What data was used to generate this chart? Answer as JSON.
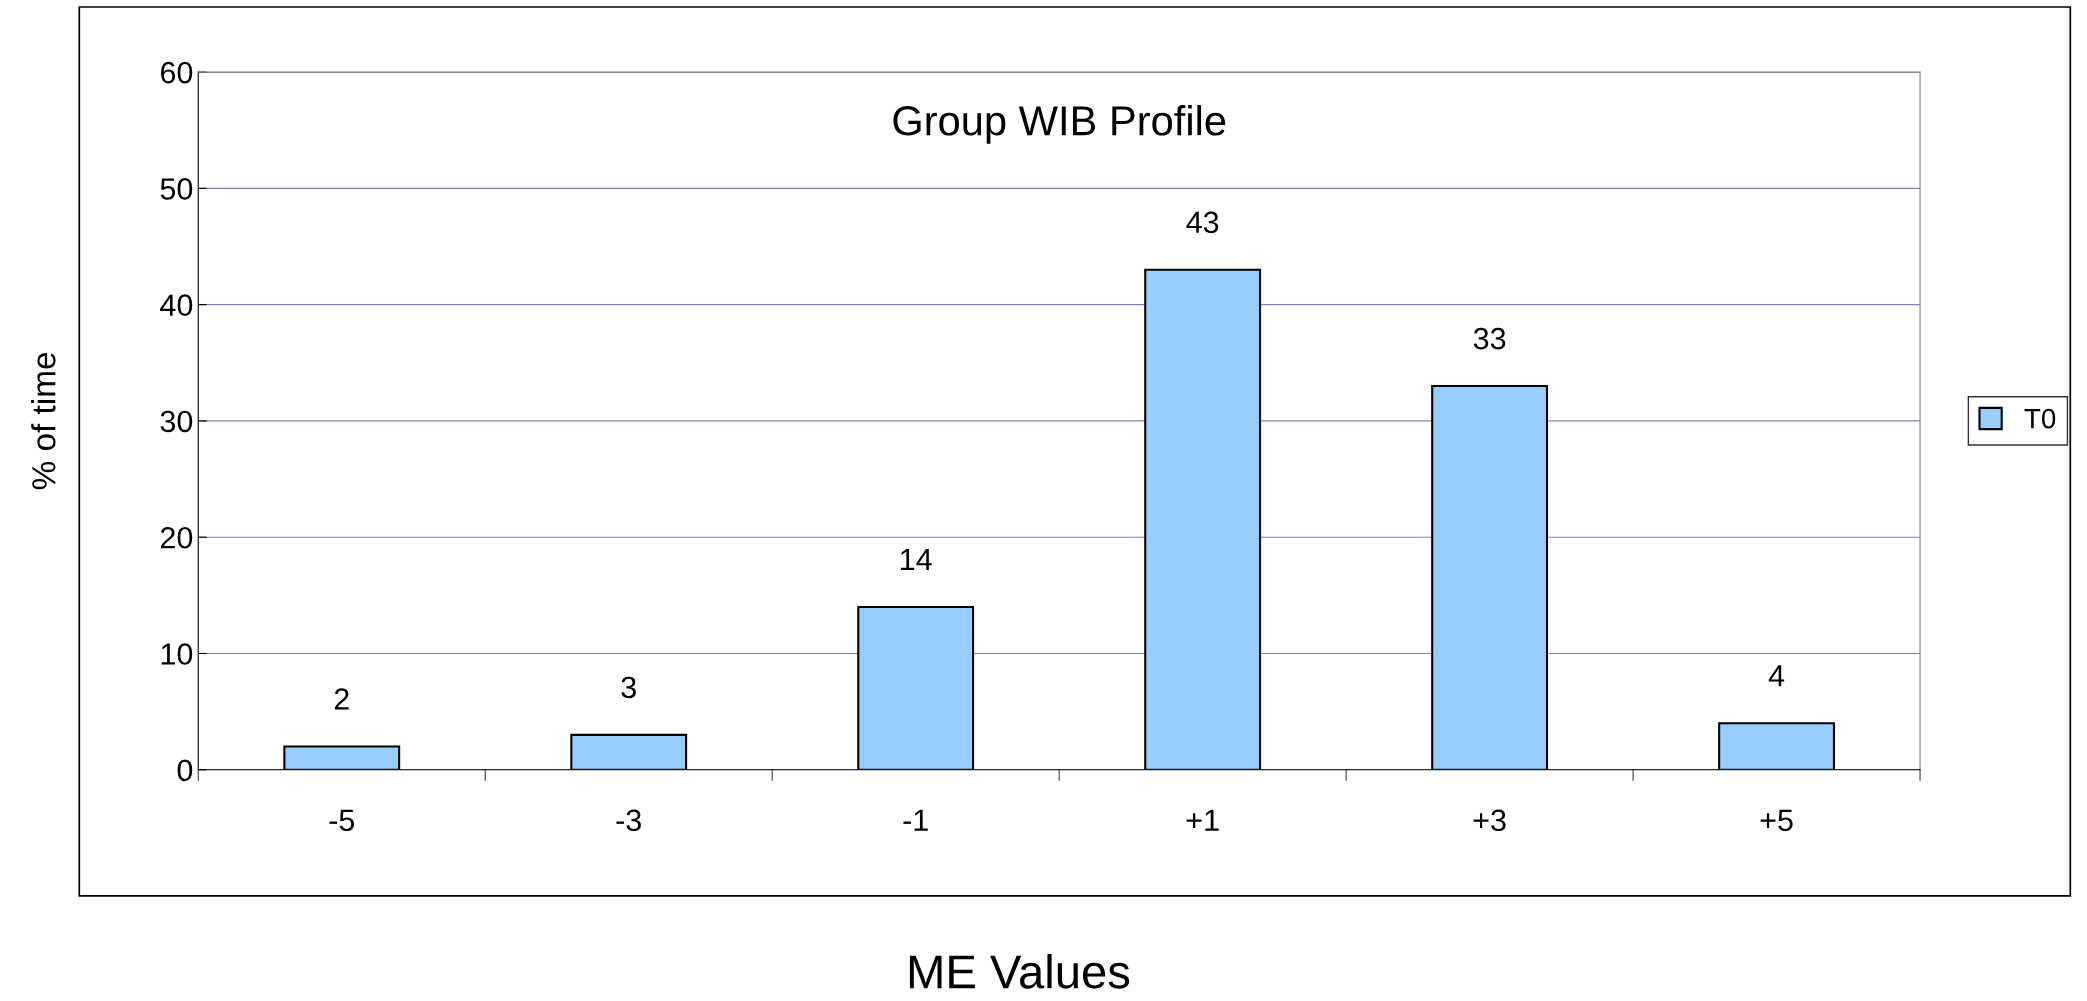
{
  "chart_data": {
    "type": "bar",
    "title": "Group WIB Profile",
    "xlabel": "ME Values",
    "ylabel": "% of time",
    "categories": [
      "-5",
      "-3",
      "-1",
      "+1",
      "+3",
      "+5"
    ],
    "series": [
      {
        "name": "T0",
        "color": "#99ccff",
        "values": [
          2,
          3,
          14,
          43,
          33,
          4
        ]
      }
    ],
    "ylim": [
      0,
      60
    ],
    "yticks": [
      0,
      10,
      20,
      30,
      40,
      50,
      60
    ],
    "grid": "y",
    "legend": "right",
    "data_labels": true
  }
}
